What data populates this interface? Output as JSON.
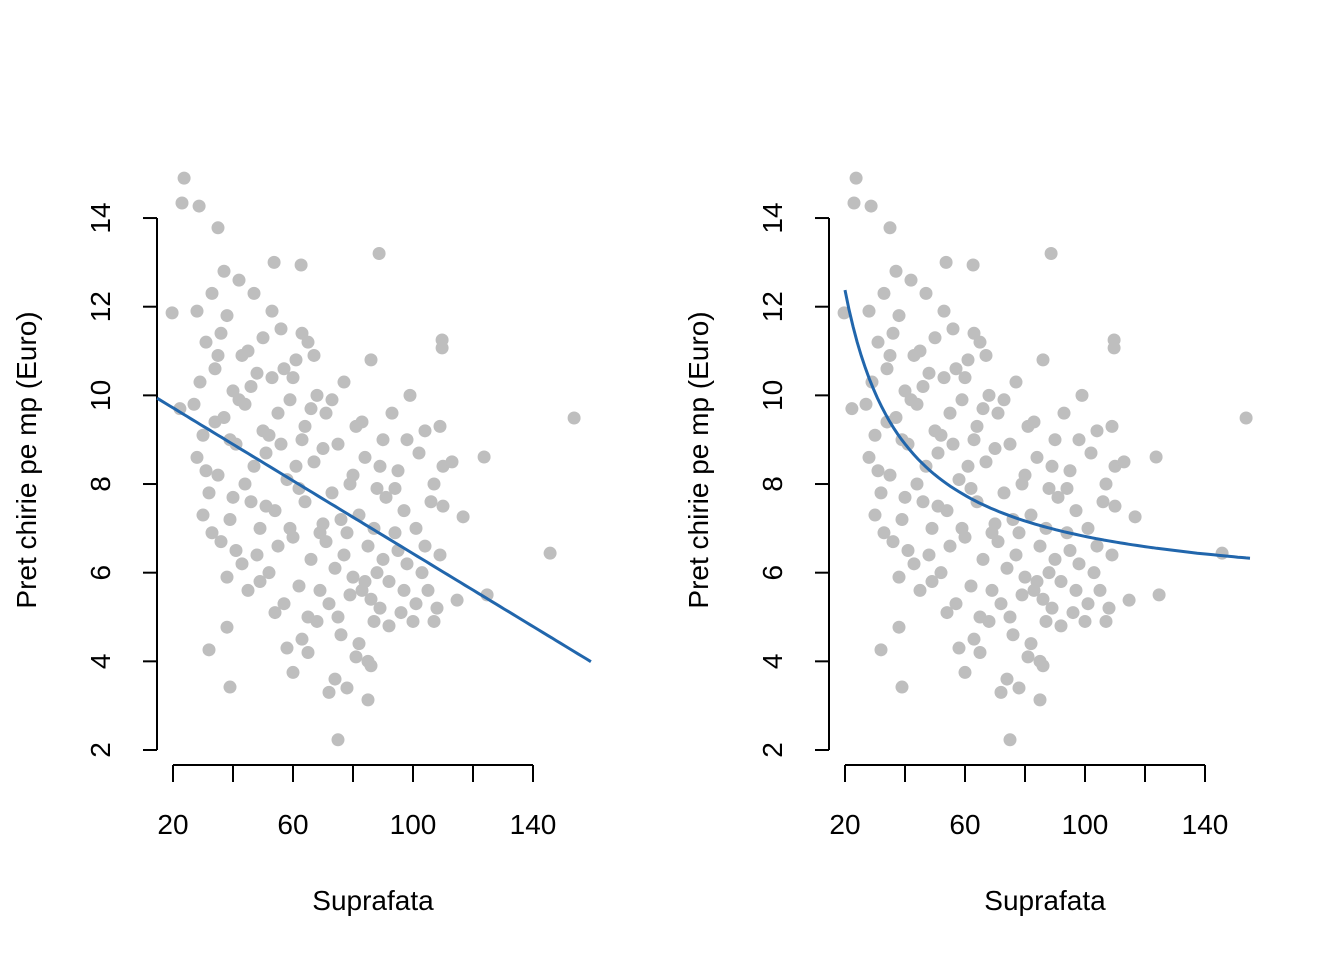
{
  "chart_data": [
    {
      "type": "scatter",
      "panel": "left",
      "xlabel": "Suprafata",
      "ylabel": "Pret chirie pe mp (Euro)",
      "xlim": [
        14,
        160
      ],
      "ylim": [
        2,
        15
      ],
      "xticks": [
        20,
        40,
        60,
        80,
        100,
        120,
        140
      ],
      "xtick_labels": [
        "20",
        "60",
        "100",
        "140"
      ],
      "yticks": [
        2,
        4,
        6,
        8,
        10,
        12,
        14
      ],
      "ytick_labels": [
        "2",
        "4",
        "6",
        "8",
        "10",
        "12",
        "14"
      ],
      "fit": {
        "kind": "linear",
        "intercept": 10.54,
        "slope": -0.0411,
        "x_range": [
          14.7,
          159.3
        ],
        "color": "#2166AC"
      },
      "point_color": "#BEBEBE",
      "grid": false
    },
    {
      "type": "scatter",
      "panel": "right",
      "xlabel": "Suprafata",
      "ylabel": "Pret chirie pe mp (Euro)",
      "xlim": [
        14,
        160
      ],
      "ylim": [
        2,
        15
      ],
      "xticks": [
        20,
        40,
        60,
        80,
        100,
        120,
        140
      ],
      "xtick_labels": [
        "20",
        "60",
        "100",
        "140"
      ],
      "yticks": [
        2,
        4,
        6,
        8,
        10,
        12,
        14
      ],
      "ytick_labels": [
        "2",
        "4",
        "6",
        "8",
        "10",
        "12",
        "14"
      ],
      "fit": {
        "kind": "inverse",
        "a": 5.43,
        "b": 138.9,
        "x_range": [
          20,
          155
        ],
        "color": "#2166AC"
      },
      "point_color": "#BEBEBE",
      "grid": false
    }
  ],
  "points": [
    [
      23.7,
      14.9
    ],
    [
      23,
      14.34
    ],
    [
      28.7,
      14.27
    ],
    [
      35,
      13.78
    ],
    [
      88.7,
      13.2
    ],
    [
      153.7,
      9.49
    ],
    [
      145.7,
      6.44
    ],
    [
      75,
      2.23
    ],
    [
      85,
      3.13
    ],
    [
      39,
      3.42
    ],
    [
      124.7,
      5.5
    ],
    [
      123.7,
      8.61
    ],
    [
      109.7,
      11.25
    ],
    [
      109.7,
      11.07
    ],
    [
      116.7,
      7.26
    ],
    [
      114.7,
      5.38
    ],
    [
      19.7,
      11.86
    ],
    [
      62.7,
      12.94
    ],
    [
      53.7,
      13.0
    ],
    [
      32,
      4.26
    ],
    [
      38,
      4.77
    ],
    [
      22.3,
      9.7
    ],
    [
      109,
      6.4
    ],
    [
      27,
      9.8
    ],
    [
      28,
      8.6
    ],
    [
      29,
      10.3
    ],
    [
      30,
      9.1
    ],
    [
      31,
      11.2
    ],
    [
      32,
      7.8
    ],
    [
      33,
      12.3
    ],
    [
      34,
      10.6
    ],
    [
      35,
      8.2
    ],
    [
      36,
      6.7
    ],
    [
      37,
      9.5
    ],
    [
      38,
      11.8
    ],
    [
      39,
      7.2
    ],
    [
      40,
      10.1
    ],
    [
      41,
      8.9
    ],
    [
      42,
      12.6
    ],
    [
      43,
      6.2
    ],
    [
      44,
      9.8
    ],
    [
      45,
      11.0
    ],
    [
      46,
      7.6
    ],
    [
      47,
      8.4
    ],
    [
      48,
      10.5
    ],
    [
      49,
      5.8
    ],
    [
      50,
      9.2
    ],
    [
      28,
      11.9
    ],
    [
      30,
      7.3
    ],
    [
      33,
      6.9
    ],
    [
      35,
      10.9
    ],
    [
      37,
      12.8
    ],
    [
      39,
      9.0
    ],
    [
      41,
      6.5
    ],
    [
      43,
      10.9
    ],
    [
      45,
      5.6
    ],
    [
      47,
      12.3
    ],
    [
      49,
      7.0
    ],
    [
      31,
      8.3
    ],
    [
      34,
      9.4
    ],
    [
      36,
      11.4
    ],
    [
      38,
      5.9
    ],
    [
      40,
      7.7
    ],
    [
      42,
      9.9
    ],
    [
      44,
      8.0
    ],
    [
      46,
      10.2
    ],
    [
      48,
      6.4
    ],
    [
      50,
      11.3
    ],
    [
      51,
      8.7
    ],
    [
      52,
      6.0
    ],
    [
      53,
      10.4
    ],
    [
      54,
      7.4
    ],
    [
      55,
      9.6
    ],
    [
      56,
      11.5
    ],
    [
      57,
      5.3
    ],
    [
      58,
      8.1
    ],
    [
      59,
      9.9
    ],
    [
      60,
      6.8
    ],
    [
      61,
      10.8
    ],
    [
      62,
      7.9
    ],
    [
      63,
      4.5
    ],
    [
      64,
      9.3
    ],
    [
      65,
      11.2
    ],
    [
      66,
      6.3
    ],
    [
      67,
      8.5
    ],
    [
      68,
      10.0
    ],
    [
      69,
      5.6
    ],
    [
      70,
      7.1
    ],
    [
      52,
      9.1
    ],
    [
      54,
      5.1
    ],
    [
      56,
      8.9
    ],
    [
      58,
      4.3
    ],
    [
      60,
      10.4
    ],
    [
      62,
      5.7
    ],
    [
      64,
      7.6
    ],
    [
      66,
      9.7
    ],
    [
      68,
      4.9
    ],
    [
      70,
      8.8
    ],
    [
      53,
      11.9
    ],
    [
      55,
      6.6
    ],
    [
      57,
      10.6
    ],
    [
      59,
      7.0
    ],
    [
      61,
      8.4
    ],
    [
      63,
      9.0
    ],
    [
      65,
      5.0
    ],
    [
      67,
      10.9
    ],
    [
      69,
      6.9
    ],
    [
      51,
      7.5
    ],
    [
      60,
      3.75
    ],
    [
      65,
      4.2
    ],
    [
      63,
      11.4
    ],
    [
      71,
      9.6
    ],
    [
      72,
      5.3
    ],
    [
      73,
      7.8
    ],
    [
      74,
      6.1
    ],
    [
      75,
      8.9
    ],
    [
      76,
      4.6
    ],
    [
      77,
      10.3
    ],
    [
      78,
      6.9
    ],
    [
      79,
      5.5
    ],
    [
      80,
      8.2
    ],
    [
      81,
      4.1
    ],
    [
      82,
      7.3
    ],
    [
      83,
      9.4
    ],
    [
      84,
      5.8
    ],
    [
      85,
      6.6
    ],
    [
      86,
      10.8
    ],
    [
      87,
      4.9
    ],
    [
      88,
      7.9
    ],
    [
      89,
      5.2
    ],
    [
      90,
      6.3
    ],
    [
      72,
      3.3
    ],
    [
      74,
      3.6
    ],
    [
      76,
      7.2
    ],
    [
      78,
      3.4
    ],
    [
      80,
      5.9
    ],
    [
      82,
      4.4
    ],
    [
      84,
      8.6
    ],
    [
      86,
      5.4
    ],
    [
      88,
      6.0
    ],
    [
      90,
      9.0
    ],
    [
      73,
      9.9
    ],
    [
      75,
      5.0
    ],
    [
      77,
      6.4
    ],
    [
      79,
      8.0
    ],
    [
      81,
      9.3
    ],
    [
      83,
      5.6
    ],
    [
      85,
      4.0
    ],
    [
      87,
      7.0
    ],
    [
      89,
      8.4
    ],
    [
      71,
      6.7
    ],
    [
      86,
      3.9
    ],
    [
      91,
      7.7
    ],
    [
      92,
      5.8
    ],
    [
      93,
      9.6
    ],
    [
      94,
      6.9
    ],
    [
      95,
      8.3
    ],
    [
      96,
      5.1
    ],
    [
      97,
      7.4
    ],
    [
      98,
      6.2
    ],
    [
      99,
      10.0
    ],
    [
      100,
      4.9
    ],
    [
      101,
      7.0
    ],
    [
      102,
      8.7
    ],
    [
      103,
      6.0
    ],
    [
      104,
      9.2
    ],
    [
      105,
      5.6
    ],
    [
      106,
      7.6
    ],
    [
      107,
      8.0
    ],
    [
      108,
      5.2
    ],
    [
      109,
      9.3
    ],
    [
      110,
      7.5
    ],
    [
      92,
      4.8
    ],
    [
      95,
      6.5
    ],
    [
      98,
      9.0
    ],
    [
      101,
      5.3
    ],
    [
      104,
      6.6
    ],
    [
      107,
      4.9
    ],
    [
      110,
      8.4
    ],
    [
      113,
      8.5
    ],
    [
      94,
      7.9
    ],
    [
      97,
      5.6
    ]
  ]
}
